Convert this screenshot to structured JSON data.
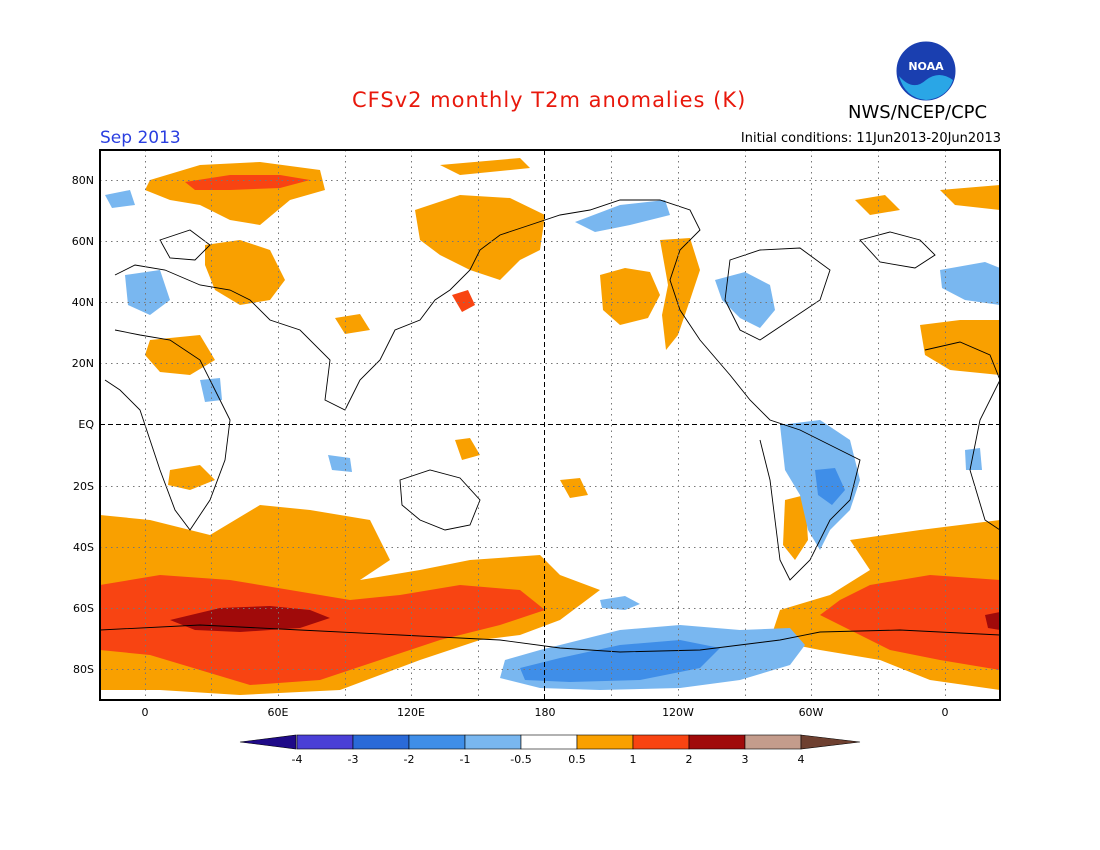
{
  "header": {
    "title": "CFSv2 monthly T2m anomalies (K)",
    "agency": "NWS/NCEP/CPC",
    "valid_month": "Sep 2013",
    "initial_conditions": "Initial conditions: 11Jun2013-20Jun2013",
    "logo_text": "NOAA"
  },
  "map": {
    "projection": "cylindrical equidistant, centered on 180",
    "lon_labels": [
      "0",
      "60E",
      "120E",
      "180",
      "120W",
      "60W",
      "0"
    ],
    "lat_labels": [
      "80N",
      "60N",
      "40N",
      "20N",
      "EQ",
      "20S",
      "40S",
      "60S",
      "80S"
    ],
    "reference_lines": [
      "Equator (dashed)",
      "180 meridian (dashed)"
    ],
    "grid": "dotted every 20° lat / 30° lon"
  },
  "colorbar": {
    "labels": [
      "-4",
      "-3",
      "-2",
      "-1",
      "-0.5",
      "0.5",
      "1",
      "2",
      "3",
      "4"
    ],
    "colors": [
      "#1f0a88",
      "#4a3fd6",
      "#2a6ad8",
      "#3f8ee8",
      "#79b7f0",
      "#ffffff",
      "#f9a000",
      "#f84412",
      "#a00a0a",
      "#c49c8c",
      "#6e4030"
    ],
    "units": "K"
  }
}
